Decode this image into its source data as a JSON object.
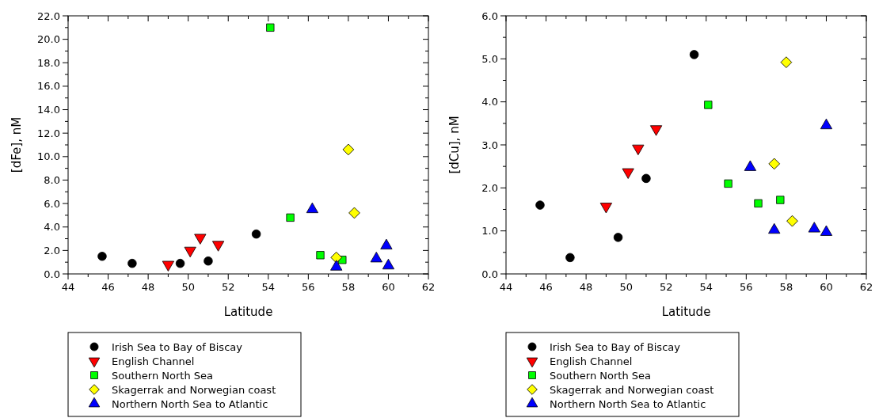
{
  "chart_data": [
    {
      "type": "scatter",
      "xlabel": "Latitude",
      "ylabel": "[dFe], nM",
      "legend": "bottom",
      "grid": false,
      "xlim": [
        44,
        62
      ],
      "ylim": [
        0,
        22
      ],
      "xticks": [
        44,
        {
          "value": 45,
          "label": null
        },
        46,
        {
          "value": 47,
          "label": null
        },
        48,
        {
          "value": 49,
          "label": null
        },
        50,
        {
          "value": 51,
          "label": null
        },
        52,
        {
          "value": 53,
          "label": null
        },
        54,
        {
          "value": 55,
          "label": null
        },
        56,
        {
          "value": 57,
          "label": null
        },
        58,
        {
          "value": 59,
          "label": null
        },
        60,
        {
          "value": 61,
          "label": null
        },
        62
      ],
      "yticks": [
        {
          "value": 0,
          "label": "0.0"
        },
        {
          "value": 1,
          "label": null
        },
        {
          "value": 2,
          "label": "2.0"
        },
        {
          "value": 3,
          "label": null
        },
        {
          "value": 4,
          "label": "4.0"
        },
        {
          "value": 5,
          "label": null
        },
        {
          "value": 6,
          "label": "6.0"
        },
        {
          "value": 7,
          "label": null
        },
        {
          "value": 8,
          "label": "8.0"
        },
        {
          "value": 9,
          "label": null
        },
        {
          "value": 10,
          "label": "10.0"
        },
        {
          "value": 11,
          "label": null
        },
        {
          "value": 12,
          "label": "12.0"
        },
        {
          "value": 13,
          "label": null
        },
        {
          "value": 14,
          "label": "14.0"
        },
        {
          "value": 15,
          "label": null
        },
        {
          "value": 16,
          "label": "16.0"
        },
        {
          "value": 17,
          "label": null
        },
        {
          "value": 18,
          "label": "18.0"
        },
        {
          "value": 19,
          "label": null
        },
        {
          "value": 20,
          "label": "20.0"
        },
        {
          "value": 21,
          "label": null
        },
        {
          "value": 22,
          "label": "22.0"
        }
      ],
      "series": [
        {
          "name": "Irish Sea to Bay of Biscay",
          "color": "#000000",
          "marker": "circle",
          "x": [
            45.7,
            47.2,
            49.6,
            51.0,
            53.4
          ],
          "values": [
            1.5,
            0.9,
            0.9,
            1.1,
            3.4
          ]
        },
        {
          "name": "English Channel",
          "color": "#ff0000",
          "marker": "triangle-down",
          "x": [
            49.0,
            50.1,
            50.6,
            51.5
          ],
          "values": [
            0.8,
            2.0,
            3.1,
            2.5
          ]
        },
        {
          "name": "Southern North Sea",
          "color": "#00ff00",
          "marker": "square",
          "x": [
            54.1,
            55.1,
            56.6,
            57.7
          ],
          "values": [
            21.0,
            4.8,
            1.6,
            1.2
          ]
        },
        {
          "name": "Skagerrak and Norwegian coast",
          "color": "#ffff00",
          "marker": "diamond",
          "x": [
            57.4,
            58.0,
            58.3
          ],
          "values": [
            1.4,
            10.6,
            5.2
          ]
        },
        {
          "name": "Northern North Sea to Atlantic",
          "color": "#0000ff",
          "marker": "triangle",
          "x": [
            56.2,
            57.4,
            59.4,
            59.9,
            60.0
          ],
          "values": [
            5.5,
            0.6,
            1.3,
            2.4,
            0.7
          ]
        }
      ]
    },
    {
      "type": "scatter",
      "xlabel": "Latitude",
      "ylabel": "[dCu], nM",
      "legend": "bottom",
      "grid": false,
      "xlim": [
        44,
        62
      ],
      "ylim": [
        0,
        6
      ],
      "xticks": [
        44,
        {
          "value": 45,
          "label": null
        },
        46,
        {
          "value": 47,
          "label": null
        },
        48,
        {
          "value": 49,
          "label": null
        },
        50,
        {
          "value": 51,
          "label": null
        },
        52,
        {
          "value": 53,
          "label": null
        },
        54,
        {
          "value": 55,
          "label": null
        },
        56,
        {
          "value": 57,
          "label": null
        },
        58,
        {
          "value": 59,
          "label": null
        },
        60,
        {
          "value": 61,
          "label": null
        },
        62
      ],
      "yticks": [
        {
          "value": 0,
          "label": "0.0"
        },
        {
          "value": 0.5,
          "label": null
        },
        {
          "value": 1,
          "label": "1.0"
        },
        {
          "value": 1.5,
          "label": null
        },
        {
          "value": 2,
          "label": "2.0"
        },
        {
          "value": 2.5,
          "label": null
        },
        {
          "value": 3,
          "label": "3.0"
        },
        {
          "value": 3.5,
          "label": null
        },
        {
          "value": 4,
          "label": "4.0"
        },
        {
          "value": 4.5,
          "label": null
        },
        {
          "value": 5,
          "label": "5.0"
        },
        {
          "value": 5.5,
          "label": null
        },
        {
          "value": 6,
          "label": "6.0"
        }
      ],
      "series": [
        {
          "name": "Irish Sea to Bay of Biscay",
          "color": "#000000",
          "marker": "circle",
          "x": [
            45.7,
            47.2,
            49.6,
            51.0,
            53.4
          ],
          "values": [
            1.6,
            0.38,
            0.85,
            2.22,
            5.1
          ]
        },
        {
          "name": "English Channel",
          "color": "#ff0000",
          "marker": "triangle-down",
          "x": [
            49.0,
            50.1,
            50.6,
            51.5
          ],
          "values": [
            1.57,
            2.37,
            2.92,
            3.37
          ]
        },
        {
          "name": "Southern North Sea",
          "color": "#00ff00",
          "marker": "square",
          "x": [
            54.1,
            55.1,
            56.6,
            57.7
          ],
          "values": [
            3.93,
            2.1,
            1.64,
            1.72
          ]
        },
        {
          "name": "Skagerrak and Norwegian coast",
          "color": "#ffff00",
          "marker": "diamond",
          "x": [
            57.4,
            58.0,
            58.3
          ],
          "values": [
            2.56,
            4.92,
            1.23
          ]
        },
        {
          "name": "Northern North Sea to Atlantic",
          "color": "#0000ff",
          "marker": "triangle",
          "x": [
            56.2,
            57.4,
            59.4,
            60.0,
            60.0
          ],
          "values": [
            2.48,
            1.02,
            1.05,
            3.45,
            0.97
          ]
        }
      ]
    }
  ]
}
